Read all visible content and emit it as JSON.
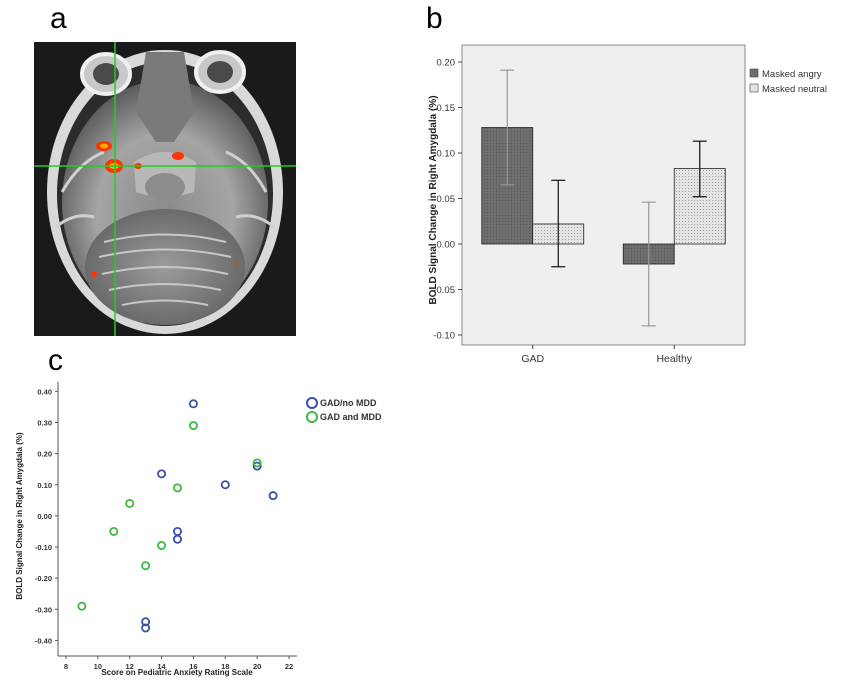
{
  "panel_labels": {
    "a": "a",
    "b": "b",
    "c": "c"
  },
  "colors": {
    "crosshair": "#22cc22",
    "activation": "#ff3300",
    "angry_fill": "#6e6e6e",
    "neutral_fill": "#e4e4e4",
    "plot_bg_b": "#efefef",
    "gad_no_mdd": "#3a4fa8",
    "gad_and_mdd": "#3fb83f"
  },
  "chart_data": [
    {
      "id": "b",
      "type": "bar",
      "categories": [
        "GAD",
        "Healthy"
      ],
      "ylabel": "BOLD Signal Change in Right Amygdala (%)",
      "xlabel": "",
      "ylim": [
        -0.1,
        0.2
      ],
      "yticks": [
        "0.20",
        "0.15",
        "0.10",
        "0.05",
        "0.00",
        "-0.05",
        "-0.10"
      ],
      "legend_position": "right",
      "series": [
        {
          "name": "Masked angry",
          "values": [
            0.128,
            -0.022
          ],
          "err_low": [
            0.065,
            -0.09
          ],
          "err_high": [
            0.191,
            0.046
          ]
        },
        {
          "name": "Masked neutral",
          "values": [
            0.022,
            0.083
          ],
          "err_low": [
            -0.025,
            0.052
          ],
          "err_high": [
            0.07,
            0.113
          ]
        }
      ]
    },
    {
      "id": "c",
      "type": "scatter",
      "xlabel": "Score on Pediatric Anxiety Rating Scale",
      "ylabel": "BOLD Signal Change in Right Amygdala (%)",
      "xlim": [
        7.5,
        22.5
      ],
      "ylim": [
        -0.45,
        0.43
      ],
      "xticks": [
        "8",
        "10",
        "12",
        "14",
        "16",
        "18",
        "20",
        "22"
      ],
      "yticks": [
        "0.40",
        "0.30",
        "0.20",
        "0.10",
        "0.00",
        "-0.10",
        "-0.20",
        "-0.30",
        "-0.40"
      ],
      "legend_position": "top-right",
      "series": [
        {
          "name": "GAD/no MDD",
          "x": [
            16,
            14,
            18,
            20,
            21,
            15,
            15,
            13,
            13
          ],
          "y": [
            0.36,
            0.135,
            0.1,
            0.16,
            0.065,
            -0.05,
            -0.075,
            -0.34,
            -0.36
          ]
        },
        {
          "name": "GAD and MDD",
          "x": [
            16,
            20,
            15,
            12,
            11,
            14,
            13,
            9
          ],
          "y": [
            0.29,
            0.17,
            0.09,
            0.04,
            -0.05,
            -0.095,
            -0.16,
            -0.29
          ]
        }
      ]
    }
  ]
}
